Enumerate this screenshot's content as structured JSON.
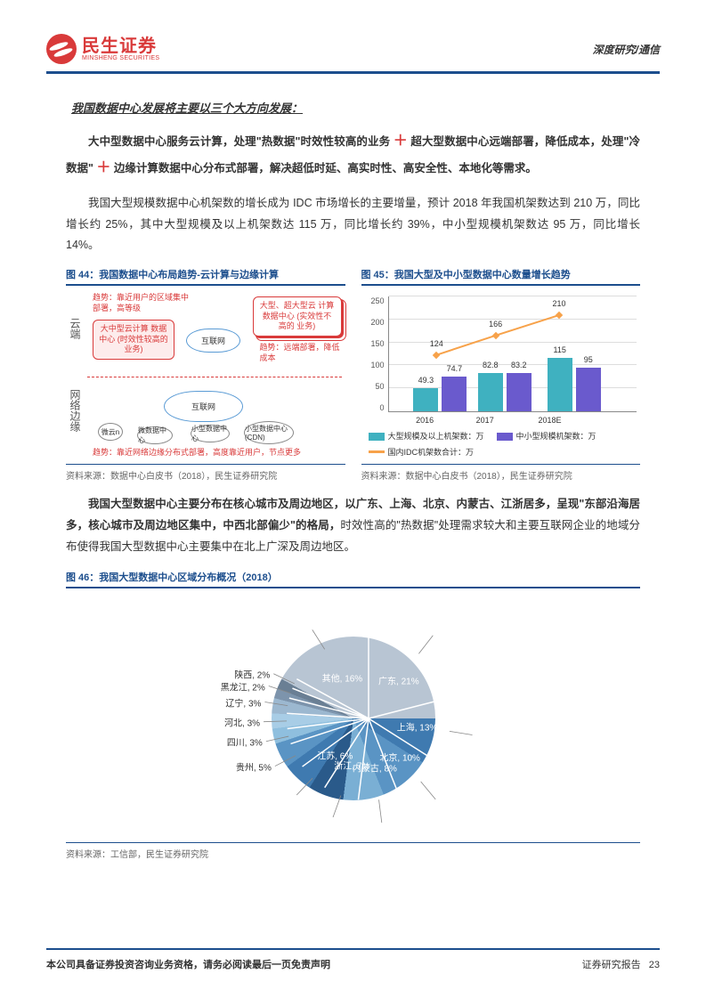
{
  "header": {
    "logo_cn": "民生证券",
    "logo_en": "MINSHENG SECURITIES",
    "right": "深度研究/通信"
  },
  "title_main": "我国数据中心发展将主要以三个大方向发展：",
  "para1": {
    "p1": "大中型数据中心服务云计算，处理\"热数据\"时效性较高的业务",
    "plus1": "＋",
    "p2": "超大型数据中心远端部署，降低成本，处理\"冷数据\"",
    "plus2": "＋",
    "p3": "边缘计算数据中心分布式部署，解决超低时延、高实时性、高安全性、本地化等需求。"
  },
  "para2": "我国大型规模数据中心机架数的增长成为 IDC 市场增长的主要增量，预计 2018 年我国机架数达到 210 万，同比增长约 25%，其中大型规模及以上机架数达 115 万，同比增长约 39%，中小型规模机架数达 95 万，同比增长 14%。",
  "fig44": {
    "title": "图 44：我国数据中心布局趋势-云计算与边缘计算",
    "source": "资料来源：数据中心白皮书（2018），民生证券研究院",
    "cloud_label": "云端",
    "edge_label": "网络边缘",
    "note1": "趋势：靠近用户的区域集中部署，高等级",
    "box_left": "大中型云计算\n数据中心\n(时效性较高的\n业务)",
    "internet1": "互联网",
    "box_right": "大型、超大型云\n计算数据中心\n(实效性不高的\n业务)",
    "note2": "趋势：远端部署，降低成本",
    "internet2": "互联网",
    "b1": "微云n",
    "b2": "微数据中心",
    "b3": "小型数据中心",
    "b4": "小型数据中心(CDN)",
    "note3": "趋势：靠近网络边缘分布式部署，高度靠近用户，节点更多"
  },
  "fig45": {
    "title": "图 45：我国大型及中小型数据中心数量增长趋势",
    "source": "资料来源：数据中心白皮书（2018），民生证券研究院",
    "yticks": [
      "0",
      "50",
      "100",
      "150",
      "200",
      "250"
    ],
    "ymax": 250,
    "years": [
      "2016",
      "2017",
      "2018E"
    ],
    "bar1": {
      "vals": [
        49.3,
        82.8,
        115
      ],
      "color": "#3fb1c0",
      "label": "大型规模及以上机架数：万"
    },
    "bar2": {
      "vals": [
        74.7,
        83.2,
        95
      ],
      "color": "#6a5acd",
      "label": "中小型规模机架数：万"
    },
    "line": {
      "vals": [
        124,
        166,
        210
      ],
      "color": "#f7a24a",
      "label": "国内IDC机架数合计：万"
    }
  },
  "para3": {
    "bold": "我国大型数据中心主要分布在核心城市及周边地区，以广东、上海、北京、内蒙古、江浙居多，呈现\"东部沿海居多，核心城市及周边地区集中，中西北部偏少\"的格局，",
    "rest": "时效性高的\"热数据\"处理需求较大和主要互联网企业的地域分布使得我国大型数据中心主要集中在北上广深及周边地区。"
  },
  "fig46": {
    "title": "图 46：我国大型数据中心区域分布概况（2018）",
    "source": "资料来源：工信部，民生证券研究院",
    "slices": [
      {
        "label": "广东, 21%",
        "v": 21,
        "c": "#2a5a8a"
      },
      {
        "label": "上海, 13%",
        "v": 13,
        "c": "#3f7ab0"
      },
      {
        "label": "北京, 10%",
        "v": 10,
        "c": "#5a94c4"
      },
      {
        "label": "内蒙古, 8%",
        "v": 8,
        "c": "#7aafD4"
      },
      {
        "label": "浙江, 7%",
        "v": 7,
        "c": "#2a5a8a"
      },
      {
        "label": "江苏, 6%",
        "v": 6,
        "c": "#3f7ab0"
      },
      {
        "label": "贵州, 5%",
        "v": 5,
        "c": "#5a94c4"
      },
      {
        "label": "四川, 3%",
        "v": 3,
        "c": "#8fbfde"
      },
      {
        "label": "河北, 3%",
        "v": 3,
        "c": "#a8cde6"
      },
      {
        "label": "辽宁, 3%",
        "v": 3,
        "c": "#9cb8d0"
      },
      {
        "label": "黑龙江, 2%",
        "v": 2,
        "c": "#7d94ac"
      },
      {
        "label": "陕西, 2%",
        "v": 2,
        "c": "#6a7f94"
      },
      {
        "label": "其他, 16%",
        "v": 16,
        "c": "#b8c5d3"
      }
    ]
  },
  "footer": {
    "left": "本公司具备证券投资咨询业务资格，请务必阅读最后一页免责声明",
    "right": "证券研究报告",
    "page": "23"
  }
}
